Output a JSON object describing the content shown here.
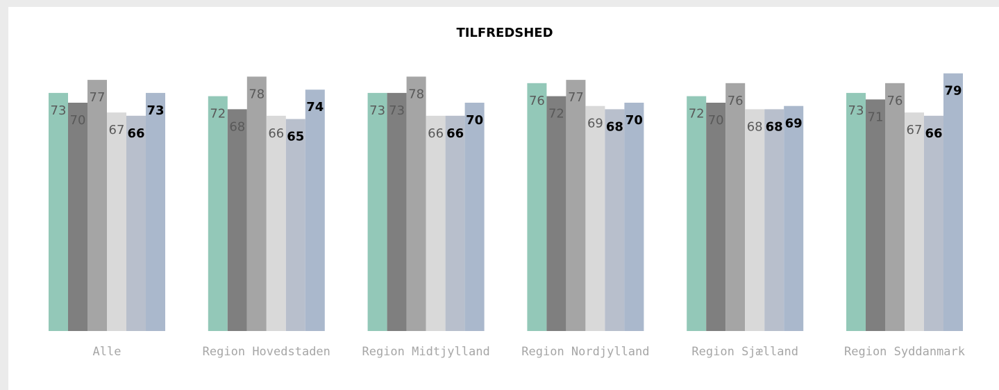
{
  "chart_data": {
    "type": "bar",
    "title": "TILFREDSHED",
    "categories": [
      "Alle",
      "Region Hovedstaden",
      "Region Midtjylland",
      "Region Nordjylland",
      "Region Sjælland",
      "Region Syddanmark"
    ],
    "series": [
      {
        "color": "#93c8b8",
        "values": [
          73,
          72,
          73,
          76,
          72,
          73
        ]
      },
      {
        "color": "#7f7f7f",
        "values": [
          70,
          68,
          73,
          72,
          70,
          71
        ]
      },
      {
        "color": "#a5a5a5",
        "values": [
          77,
          78,
          78,
          77,
          76,
          76
        ]
      },
      {
        "color": "#d9d9d9",
        "values": [
          67,
          66,
          66,
          69,
          68,
          67
        ]
      },
      {
        "color": "#b8bfcc",
        "values": [
          66,
          65,
          66,
          68,
          68,
          66
        ]
      },
      {
        "color": "#aab8cc",
        "values": [
          73,
          74,
          70,
          70,
          69,
          79
        ]
      }
    ],
    "ylim": [
      0,
      100
    ]
  }
}
